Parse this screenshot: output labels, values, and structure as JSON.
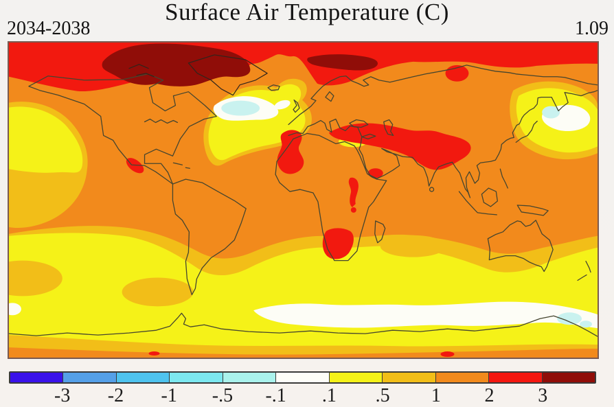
{
  "header": {
    "title": "Surface Air Temperature (C)",
    "period_label": "2034-2038",
    "value_label": "1.09"
  },
  "chart_data": {
    "type": "heatmap",
    "title": "Surface Air Temperature (C)",
    "period": "2034-2038",
    "global_mean_anomaly_c": 1.09,
    "units": "degrees C",
    "projection": "equirectangular world map, lon -180..180, lat 90..-90",
    "colorbar": {
      "orientation": "horizontal",
      "position": "bottom",
      "tick_labels": [
        "-3",
        "-2",
        "-1",
        "-.5",
        "-.1",
        ".1",
        ".5",
        "1",
        "2",
        "3"
      ],
      "segment_colors": [
        "#3A12EA",
        "#55A0E8",
        "#4FC3EE",
        "#7DE8F0",
        "#AAF2EC",
        "#FDFDF8",
        "#F5F218",
        "#F2BE18",
        "#F28A1C",
        "#F5170F",
        "#900D08"
      ],
      "segment_ranges": [
        "< -3",
        "-3 to -2",
        "-2 to -1",
        "-1 to -.5",
        "-.5 to -.1",
        "-.1 to .1",
        ".1 to .5",
        ".5 to 1",
        "1 to 2",
        "2 to 3",
        "> 3"
      ]
    },
    "notable_features": [
      {
        "region": "Arctic Ocean band",
        "anomaly_c": "2 to 3"
      },
      {
        "region": "Greenland and Canadian Arctic; Barents Sea streak",
        "anomaly_c": "> 3"
      },
      {
        "region": "Most continents and mid/low-latitude oceans",
        "anomaly_c": "1 to 2"
      },
      {
        "region": "NW Africa, Turkey-Iran-Tibet band, Arabia spot, central Africa, southern Africa, Siberia spot, Mexican Pacific coast",
        "anomaly_c": "2 to 3"
      },
      {
        "region": "Gulf of Alaska, North Atlantic, NW Pacific, subtropical southern oceans",
        "anomaly_c": ".1 to 1"
      },
      {
        "region": "North Atlantic cold blob, NW Pacific blob, Southern Ocean fringe",
        "anomaly_c": "-.5 to .1"
      }
    ]
  }
}
